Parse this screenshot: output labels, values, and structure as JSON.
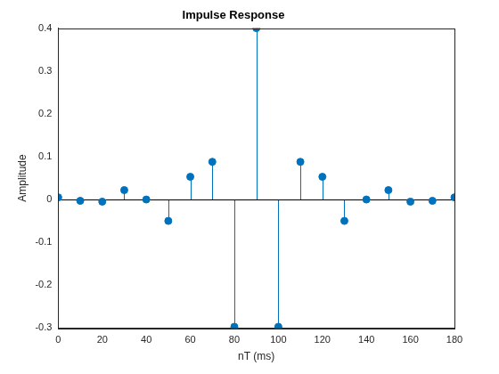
{
  "chart_data": {
    "type": "stem",
    "title": "Impulse Response",
    "x_label": "nT (ms)",
    "y_label": "Amplitude",
    "x": [
      0,
      10,
      20,
      30,
      40,
      50,
      60,
      70,
      80,
      90,
      100,
      110,
      120,
      130,
      140,
      150,
      160,
      170,
      180
    ],
    "values": [
      0.005,
      -0.003,
      -0.005,
      0.022,
      0.0,
      -0.05,
      0.053,
      0.088,
      -0.297,
      0.4,
      -0.297,
      0.088,
      0.053,
      -0.05,
      0.0,
      0.022,
      -0.005,
      -0.003,
      0.005
    ],
    "color": "#0072bd",
    "marker": "o",
    "line_style": "solid",
    "xlim": [
      0,
      180
    ],
    "xticks": [
      0,
      20,
      40,
      60,
      80,
      100,
      120,
      140,
      160,
      180
    ],
    "ylim": [
      -0.3,
      0.4
    ],
    "yticks": [
      -0.3,
      -0.2,
      -0.1,
      0,
      0.1,
      0.2,
      0.3,
      0.4
    ],
    "grid": false
  }
}
